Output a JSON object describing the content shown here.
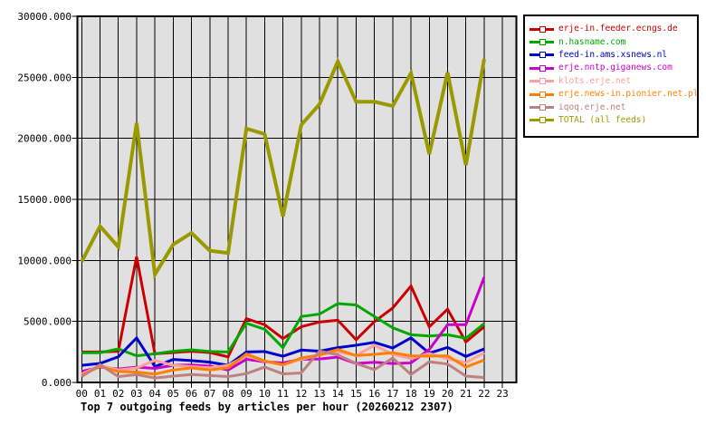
{
  "chart_data": {
    "type": "line",
    "title": "Top 7 outgoing feeds by articles per hour (20260212 2307)",
    "xlabel": "",
    "ylabel": "",
    "x_categories": [
      "00",
      "01",
      "02",
      "03",
      "04",
      "05",
      "06",
      "07",
      "08",
      "09",
      "10",
      "11",
      "12",
      "13",
      "14",
      "15",
      "16",
      "17",
      "18",
      "19",
      "20",
      "21",
      "22",
      "23"
    ],
    "ylim": [
      0,
      30000
    ],
    "ytick_step": 5000,
    "ytick_labels": [
      "0.000",
      "5000.000",
      "10000.000",
      "15000.000",
      "20000.000",
      "25000.000",
      "30000.000"
    ],
    "grid": "on",
    "legend_position": "outside-right",
    "plot_bg": "#e0e0e0",
    "grid_color": "#000000",
    "series": [
      {
        "name": "erje-in.feeder.ecngs.de",
        "color": "#cc0000",
        "width": 3,
        "values": [
          2500,
          2500,
          2550,
          10300,
          2350,
          2450,
          2550,
          2450,
          2100,
          5230,
          4730,
          3600,
          4560,
          4950,
          5100,
          3500,
          4980,
          6100,
          7900,
          4560,
          6000,
          3320,
          4560
        ]
      },
      {
        "name": "n.hasname.com",
        "color": "#00a800",
        "width": 3,
        "values": [
          2430,
          2430,
          2750,
          2180,
          2350,
          2550,
          2670,
          2530,
          2500,
          4850,
          4360,
          2850,
          5400,
          5600,
          6460,
          6350,
          5400,
          4480,
          3910,
          3810,
          3910,
          3620,
          4810
        ]
      },
      {
        "name": "feed-in.ams.xsnews.nl",
        "color": "#0000cc",
        "width": 3,
        "values": [
          1400,
          1560,
          2100,
          3650,
          1300,
          1880,
          1790,
          1660,
          1400,
          2500,
          2530,
          2150,
          2650,
          2560,
          2850,
          3050,
          3280,
          2820,
          3650,
          2400,
          2870,
          2130,
          2750
        ]
      },
      {
        "name": "erje.nntp.giganews.com",
        "color": "#cc00cc",
        "width": 3,
        "values": [
          900,
          1250,
          1100,
          1250,
          1150,
          1400,
          1430,
          1340,
          1020,
          1900,
          1690,
          1600,
          1900,
          1920,
          2080,
          1550,
          1650,
          1550,
          1600,
          2700,
          4730,
          4730,
          8620
        ]
      },
      {
        "name": "klots.erje.net",
        "color": "#ff9f9f",
        "width": 3,
        "values": [
          700,
          1390,
          1020,
          1190,
          1810,
          1400,
          1300,
          1200,
          1400,
          2180,
          1720,
          1420,
          1900,
          2250,
          2500,
          2200,
          3050,
          2300,
          1950,
          2380,
          1930,
          1630,
          2430
        ]
      },
      {
        "name": "erje.news-in.pionier.net.pl",
        "color": "#ff8000",
        "width": 3,
        "values": [
          600,
          1310,
          890,
          850,
          680,
          1020,
          1190,
          1020,
          1200,
          2330,
          1760,
          1450,
          2000,
          2250,
          2700,
          2200,
          2300,
          2430,
          2180,
          2150,
          2180,
          1260,
          1840
        ]
      },
      {
        "name": "iqoq.erje.net",
        "color": "#c08080",
        "width": 3,
        "values": [
          470,
          1460,
          480,
          650,
          360,
          520,
          650,
          570,
          480,
          720,
          1260,
          700,
          780,
          2580,
          2250,
          1550,
          1050,
          2000,
          650,
          1690,
          1510,
          520,
          400
        ]
      },
      {
        "name": "TOTAL (all feeds)",
        "color": "#9a9a00",
        "width": 4,
        "values": [
          9900,
          12800,
          11100,
          21250,
          8850,
          11300,
          12250,
          10800,
          10600,
          20800,
          20350,
          13600,
          21100,
          22800,
          26300,
          23000,
          23000,
          22650,
          25350,
          18700,
          25400,
          17800,
          26500
        ]
      }
    ]
  }
}
